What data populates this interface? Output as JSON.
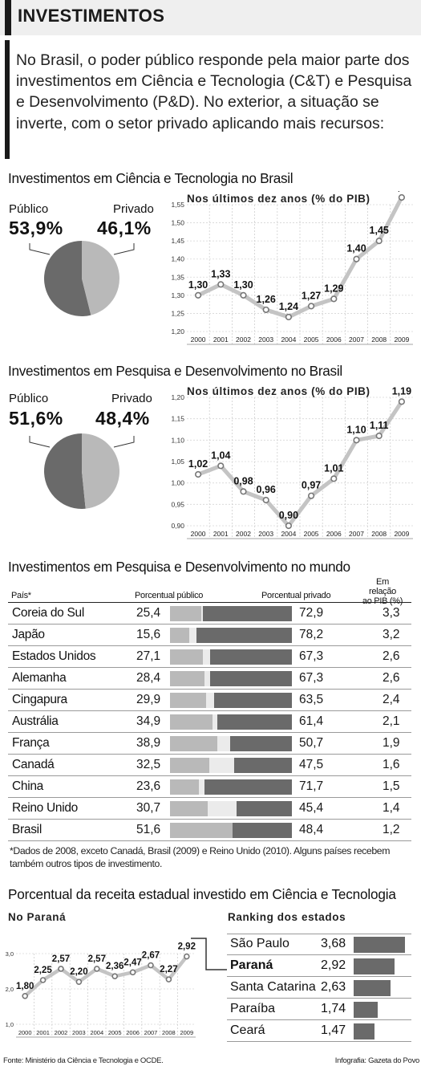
{
  "header": {
    "title": "INVESTIMENTOS"
  },
  "lead": "No Brasil, o poder público responde pela maior parte dos investimentos em Ciência e Tecnologia (C&T) e Pesquisa e Desenvolvimento (P&D). No exterior, a situação se inverte, com o setor privado aplicando mais recursos:",
  "ct": {
    "title": "Investimentos em Ciência e Tecnologia no Brasil",
    "public_label": "Público",
    "public_value": "53,9%",
    "private_label": "Privado",
    "private_value": "46,1%",
    "line_title": "Nos últimos dez anos (% do PIB)"
  },
  "pd": {
    "title": "Investimentos em Pesquisa e Desenvolvimento no Brasil",
    "public_label": "Público",
    "public_value": "51,6%",
    "private_label": "Privado",
    "private_value": "48,4%",
    "line_title": "Nos últimos dez anos (% do PIB)"
  },
  "world": {
    "title": "Investimentos em Pesquisa e Desenvolvimento no mundo",
    "col_country": "País*",
    "col_public": "Porcentual público",
    "col_private": "Porcentual privado",
    "col_pib_line1": "Em relação",
    "col_pib_line2": "ao PIB (%)",
    "note": "*Dados de 2008, exceto Canadá, Brasil (2009) e Reino Unido (2010). Alguns países recebem também outros tipos de investimento."
  },
  "state": {
    "title": "Porcentual da receita estadual investido em Ciência e Tecnologia",
    "parana_title": "No Paraná",
    "ranking_title": "Ranking dos estados"
  },
  "footer": {
    "source": "Fonte: Ministério da Ciência e Tecnologia e OCDE.",
    "credit": "Infografia: Gazeta do Povo"
  },
  "colors": {
    "public": "#b9b9b9",
    "private": "#6a6a6a",
    "line": "#c4c4c4",
    "point": "#777777"
  },
  "chart_data": [
    {
      "id": "ct_pie",
      "type": "pie",
      "title": "Investimentos em Ciência e Tecnologia no Brasil",
      "categories": [
        "Público",
        "Privado"
      ],
      "values": [
        53.9,
        46.1
      ],
      "value_labels": [
        "53,9%",
        "46,1%"
      ]
    },
    {
      "id": "ct_line",
      "type": "line",
      "title": "Nos últimos dez anos (% do PIB)",
      "x": [
        "2000",
        "2001",
        "2002",
        "2003",
        "2004",
        "2005",
        "2006",
        "2007",
        "2008",
        "2009"
      ],
      "values": [
        1.3,
        1.33,
        1.3,
        1.26,
        1.24,
        1.27,
        1.29,
        1.4,
        1.45,
        1.57
      ],
      "value_labels": [
        "1,30",
        "1,33",
        "1,30",
        "1,26",
        "1,24",
        "1,27",
        "1,29",
        "1,40",
        "1,45",
        "1,57"
      ],
      "ylim": [
        1.2,
        1.55
      ],
      "yticks": [
        1.2,
        1.25,
        1.3,
        1.35,
        1.4,
        1.45,
        1.5,
        1.55
      ],
      "ytick_labels": [
        "1,20",
        "1,25",
        "1,30",
        "1,35",
        "1,40",
        "1,45",
        "1,50",
        "1,55"
      ],
      "grid": true
    },
    {
      "id": "pd_pie",
      "type": "pie",
      "title": "Investimentos em Pesquisa e Desenvolvimento no Brasil",
      "categories": [
        "Público",
        "Privado"
      ],
      "values": [
        51.6,
        48.4
      ],
      "value_labels": [
        "51,6%",
        "48,4%"
      ]
    },
    {
      "id": "pd_line",
      "type": "line",
      "title": "Nos últimos dez anos (% do PIB)",
      "x": [
        "2000",
        "2001",
        "2002",
        "2003",
        "2004",
        "2005",
        "2006",
        "2007",
        "2008",
        "2009"
      ],
      "values": [
        1.02,
        1.04,
        0.98,
        0.96,
        0.9,
        0.97,
        1.01,
        1.1,
        1.11,
        1.19
      ],
      "value_labels": [
        "1,02",
        "1,04",
        "0,98",
        "0,96",
        "0,90",
        "0,97",
        "1,01",
        "1,10",
        "1,11",
        "1,19"
      ],
      "ylim": [
        0.9,
        1.2
      ],
      "yticks": [
        0.9,
        0.95,
        1.0,
        1.05,
        1.1,
        1.15,
        1.2
      ],
      "ytick_labels": [
        "0,90",
        "0,95",
        "1,00",
        "1,05",
        "1,10",
        "1,15",
        "1,20"
      ],
      "grid": true
    },
    {
      "id": "world_table",
      "type": "table",
      "title": "Investimentos em Pesquisa e Desenvolvimento no mundo",
      "rows": [
        {
          "country": "Coreia do Sul",
          "public": 25.4,
          "public_label": "25,4",
          "private": 72.9,
          "private_label": "72,9",
          "pib": "3,3"
        },
        {
          "country": "Japão",
          "public": 15.6,
          "public_label": "15,6",
          "private": 78.2,
          "private_label": "78,2",
          "pib": "3,2"
        },
        {
          "country": "Estados Unidos",
          "public": 27.1,
          "public_label": "27,1",
          "private": 67.3,
          "private_label": "67,3",
          "pib": "2,6"
        },
        {
          "country": "Alemanha",
          "public": 28.4,
          "public_label": "28,4",
          "private": 67.3,
          "private_label": "67,3",
          "pib": "2,6"
        },
        {
          "country": "Cingapura",
          "public": 29.9,
          "public_label": "29,9",
          "private": 63.5,
          "private_label": "63,5",
          "pib": "2,4"
        },
        {
          "country": "Austrália",
          "public": 34.9,
          "public_label": "34,9",
          "private": 61.4,
          "private_label": "61,4",
          "pib": "2,1"
        },
        {
          "country": "França",
          "public": 38.9,
          "public_label": "38,9",
          "private": 50.7,
          "private_label": "50,7",
          "pib": "1,9"
        },
        {
          "country": "Canadá",
          "public": 32.5,
          "public_label": "32,5",
          "private": 47.5,
          "private_label": "47,5",
          "pib": "1,6"
        },
        {
          "country": "China",
          "public": 23.6,
          "public_label": "23,6",
          "private": 71.7,
          "private_label": "71,7",
          "pib": "1,5"
        },
        {
          "country": "Reino Unido",
          "public": 30.7,
          "public_label": "30,7",
          "private": 45.4,
          "private_label": "45,4",
          "pib": "1,4"
        },
        {
          "country": "Brasil",
          "public": 51.6,
          "public_label": "51,6",
          "private": 48.4,
          "private_label": "48,4",
          "pib": "1,2"
        }
      ]
    },
    {
      "id": "parana_line",
      "type": "line",
      "title": "No Paraná",
      "x": [
        "2000",
        "2001",
        "2002",
        "2003",
        "2004",
        "2005",
        "2006",
        "2007",
        "2008",
        "2009"
      ],
      "values": [
        1.8,
        2.25,
        2.57,
        2.2,
        2.57,
        2.36,
        2.47,
        2.67,
        2.27,
        2.92
      ],
      "value_labels": [
        "1,80",
        "2,25",
        "2,57",
        "2,20",
        "2,57",
        "2,36",
        "2,47",
        "2,67",
        "2,27",
        "2,92"
      ],
      "ylim": [
        1.0,
        3.0
      ],
      "yticks": [
        1.0,
        2.0,
        3.0
      ],
      "ytick_labels": [
        "1,0",
        "2,0",
        "3,0"
      ],
      "grid": true
    },
    {
      "id": "ranking",
      "type": "bar",
      "title": "Ranking dos estados",
      "categories": [
        "São Paulo",
        "Paraná",
        "Santa Catarina",
        "Paraíba",
        "Ceará"
      ],
      "values": [
        3.68,
        2.92,
        2.63,
        1.74,
        1.47
      ],
      "value_labels": [
        "3,68",
        "2,92",
        "2,63",
        "1,74",
        "1,47"
      ],
      "highlight": "Paraná"
    }
  ]
}
